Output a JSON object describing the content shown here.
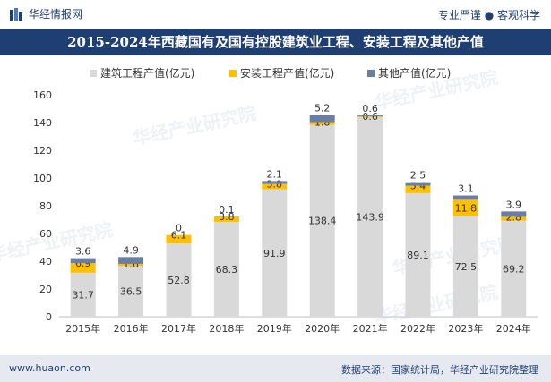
{
  "header": {
    "brand": "华经情报网",
    "slogan": "专业严谨 ● 客观科学",
    "logo_icon": "huajing-logo-icon"
  },
  "chart_data": {
    "type": "bar",
    "stacked": true,
    "title": "2015-2024年西藏国有及国有控股建筑业工程、安装工程及其他产值",
    "categories": [
      "2015年",
      "2016年",
      "2017年",
      "2018年",
      "2019年",
      "2020年",
      "2021年",
      "2022年",
      "2023年",
      "2024年"
    ],
    "series": [
      {
        "name": "建筑工程产值(亿元)",
        "color": "#d9d9d9",
        "values": [
          31.7,
          36.5,
          52.8,
          68.3,
          91.9,
          138.4,
          143.9,
          89.1,
          72.5,
          69.2
        ]
      },
      {
        "name": "安装工程产值(亿元)",
        "color": "#ffc000",
        "values": [
          6.9,
          1.6,
          6.1,
          3.8,
          3.8,
          1.8,
          0.6,
          5.4,
          11.8,
          2.8
        ]
      },
      {
        "name": "其他产值(亿元)",
        "color": "#6a7ea3",
        "values": [
          3.6,
          4.9,
          0,
          0.1,
          2.1,
          5.2,
          0.6,
          2.5,
          3.1,
          3.9
        ]
      }
    ],
    "ylim": [
      0,
      160
    ],
    "yticks": [
      0,
      20,
      40,
      60,
      80,
      100,
      120,
      140,
      160
    ],
    "legend_position": "top-center",
    "grid": false
  },
  "watermark": "华经产业研究院",
  "footer": {
    "site": "www.huaon.com",
    "source": "数据来源：国家统计局，华经产业研究院整理"
  }
}
